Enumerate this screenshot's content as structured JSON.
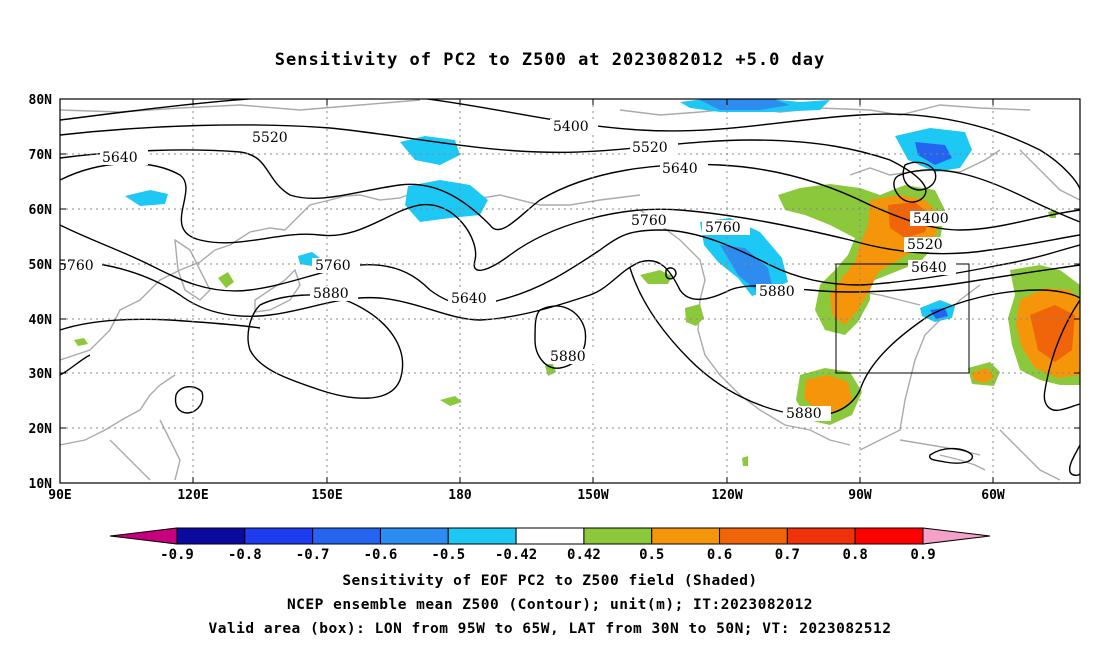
{
  "title": "Sensitivity of PC2 to Z500 at 2023082012 +5.0 day",
  "lat_labels": [
    "80N",
    "70N",
    "60N",
    "50N",
    "40N",
    "30N",
    "20N",
    "10N"
  ],
  "lon_labels": [
    "90E",
    "120E",
    "150E",
    "180",
    "150W",
    "120W",
    "90W",
    "60W"
  ],
  "contour_labels": [
    "5400",
    "5520",
    "5640",
    "5760",
    "5880"
  ],
  "colorbar": {
    "labels": [
      "-0.9",
      "-0.8",
      "-0.7",
      "-0.6",
      "-0.5",
      "-0.42",
      "0.42",
      "0.5",
      "0.6",
      "0.7",
      "0.8",
      "0.9"
    ],
    "colors": [
      "#c8007f",
      "#0a0aa0",
      "#1e3cf0",
      "#2464f0",
      "#2d8cf0",
      "#1ec8f5",
      "#ffffff",
      "#8cc83c",
      "#f5960a",
      "#f0640a",
      "#f0320a",
      "#ff0000",
      "#f5a0c8"
    ]
  },
  "captions": {
    "line1": "Sensitivity of EOF PC2 to Z500 field (Shaded)",
    "line2": "NCEP ensemble mean Z500 (Contour); unit(m); IT:2023082012",
    "line3": "Valid area (box): LON from 95W to 65W, LAT from 30N to 50N; VT: 2023082512"
  }
}
